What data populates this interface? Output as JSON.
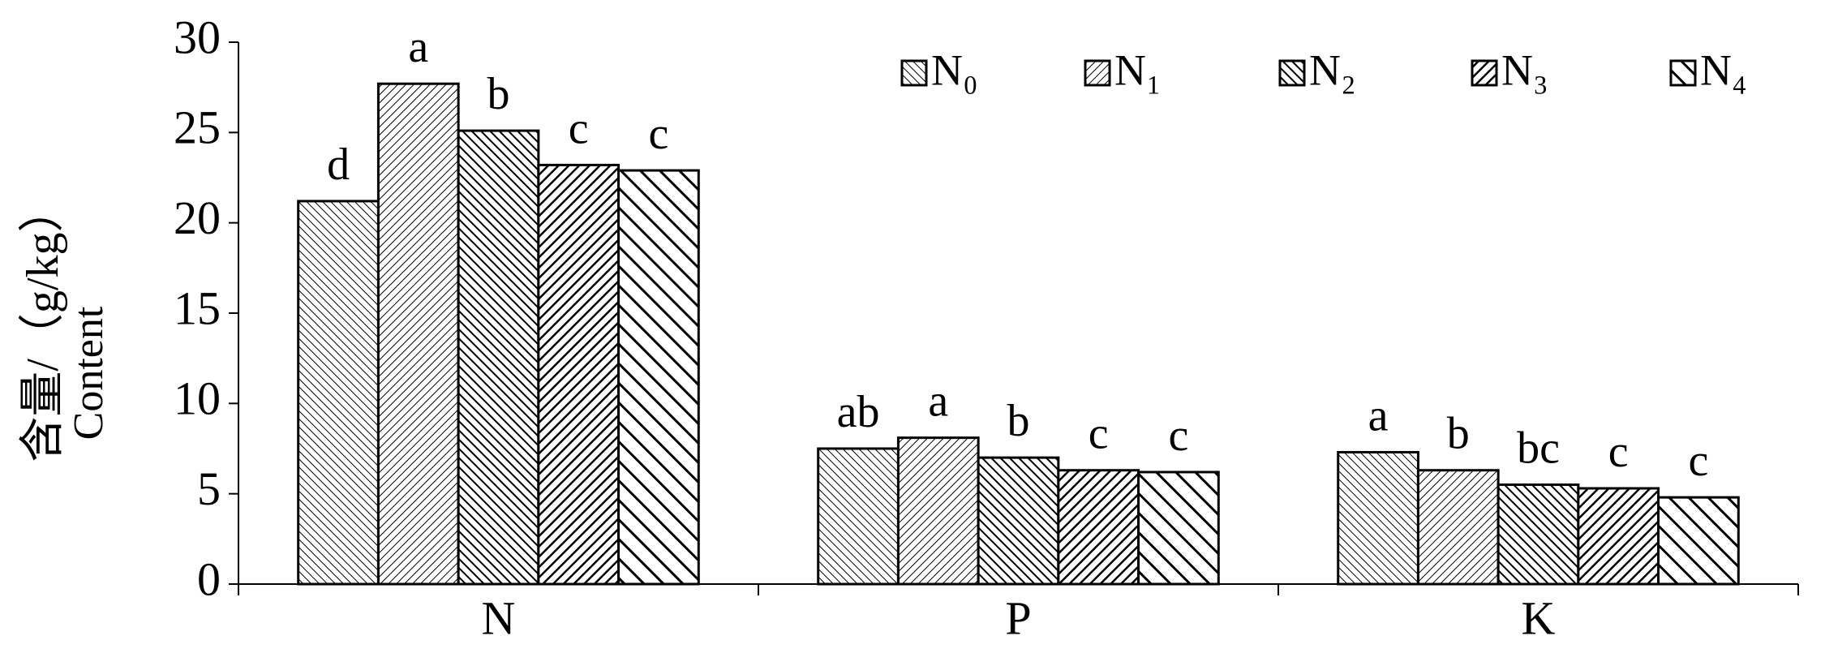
{
  "chart_data": {
    "type": "bar",
    "y_label_lines": [
      "含量/（g/kg）",
      "Content"
    ],
    "categories": [
      "N",
      "P",
      "K"
    ],
    "series": [
      {
        "name": "N₀",
        "color": "#000000",
        "values": [
          21.2,
          7.5,
          7.3
        ],
        "value_labels": [
          "d",
          "ab",
          "a"
        ]
      },
      {
        "name": "N₁",
        "color": "#000000",
        "values": [
          27.7,
          8.1,
          6.3
        ],
        "value_labels": [
          "a",
          "a",
          "b"
        ]
      },
      {
        "name": "N₂",
        "color": "#000000",
        "values": [
          25.1,
          7.0,
          5.5
        ],
        "value_labels": [
          "b",
          "b",
          "bc"
        ]
      },
      {
        "name": "N₃",
        "color": "#000000",
        "values": [
          23.2,
          6.3,
          5.3
        ],
        "value_labels": [
          "c",
          "c",
          "c"
        ]
      },
      {
        "name": "N₄",
        "color": "#000000",
        "values": [
          22.9,
          6.2,
          4.8
        ],
        "value_labels": [
          "c",
          "c",
          "c"
        ]
      }
    ],
    "ylim": [
      0,
      30
    ],
    "yticks": [
      0,
      5,
      10,
      15,
      20,
      25,
      30
    ],
    "grid": false
  }
}
